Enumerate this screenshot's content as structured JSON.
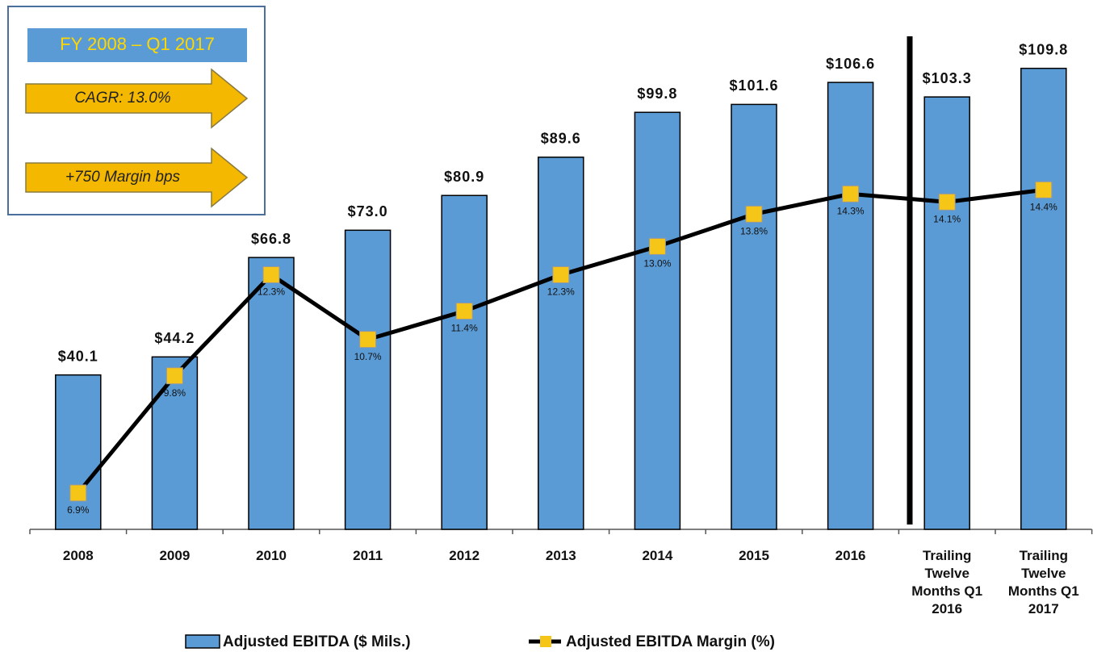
{
  "chart_data": {
    "type": "bar",
    "annotations": [
      "FY 2008 – Q1 2017",
      "CAGR:  13.0%",
      "+750  Margin bps"
    ],
    "categories": [
      "2008",
      "2009",
      "2010",
      "2011",
      "2012",
      "2013",
      "2014",
      "2015",
      "2016",
      "Trailing Twelve Months Q1 2016",
      "Trailing Twelve Months Q1 2017"
    ],
    "series": [
      {
        "name": "Adjusted EBITDA ($ Mils.)",
        "type": "bar",
        "color": "#5b9bd5",
        "values": [
          40.1,
          44.2,
          66.8,
          73.0,
          80.9,
          89.6,
          99.8,
          101.6,
          106.6,
          103.3,
          109.8
        ],
        "value_labels": [
          "$40.1",
          "$44.2",
          "$66.8",
          "$73.0",
          "$80.9",
          "$89.6",
          "$99.8",
          "$101.6",
          "$106.6",
          "$103.3",
          "$109.8"
        ]
      },
      {
        "name": "Adjusted EBITDA Margin (%)",
        "type": "line",
        "axis": "y2",
        "color": "#000000",
        "marker_color": "#f5c518",
        "values": [
          6.9,
          9.8,
          12.3,
          10.7,
          11.4,
          12.3,
          13.0,
          13.8,
          14.3,
          14.1,
          14.4
        ],
        "value_labels": [
          "6.9%",
          "9.8%",
          "12.3%",
          "10.7%",
          "11.4%",
          "12.3%",
          "13.0%",
          "13.8%",
          "14.3%",
          "14.1%",
          "14.4%"
        ]
      }
    ],
    "ylim": [
      5,
      118
    ],
    "y2lim": [
      6,
      18.3
    ]
  }
}
